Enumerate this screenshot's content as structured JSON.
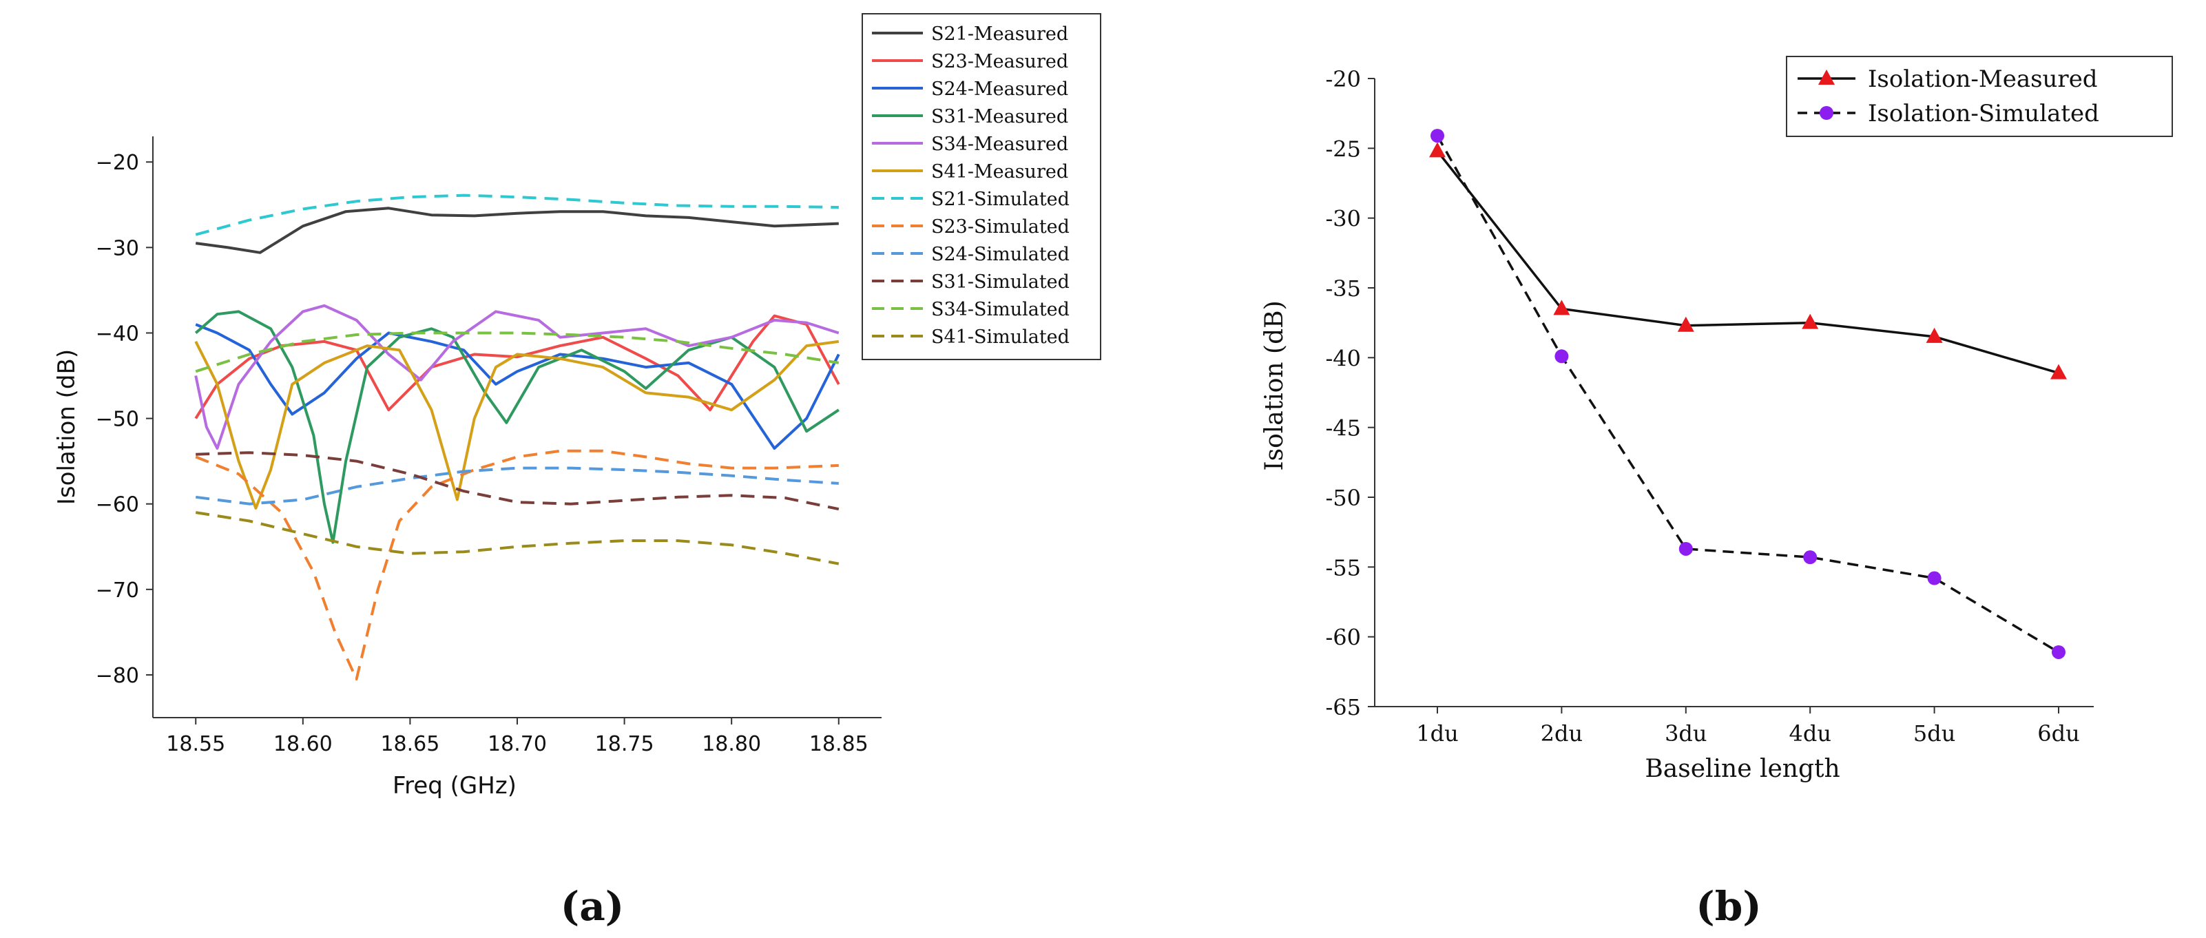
{
  "panel_labels": {
    "a": "(a)",
    "b": "(b)"
  },
  "chart_data": [
    {
      "type": "line",
      "panel": "a",
      "title": "",
      "xlabel": "Freq (GHz)",
      "ylabel": "Isolation (dB)",
      "xlim": [
        18.53,
        18.87
      ],
      "ylim": [
        -85,
        -17
      ],
      "xticks": [
        18.55,
        18.6,
        18.65,
        18.7,
        18.75,
        18.8,
        18.85
      ],
      "xtick_labels": [
        "18.55",
        "18.60",
        "18.65",
        "18.70",
        "18.75",
        "18.80",
        "18.85"
      ],
      "yticks": [
        -80,
        -70,
        -60,
        -50,
        -40,
        -30,
        -20
      ],
      "ytick_labels": [
        "−80",
        "−70",
        "−60",
        "−50",
        "−40",
        "−30",
        "−20"
      ],
      "legend_position": "top-right",
      "series": [
        {
          "name": "S21-Measured",
          "color": "#404040",
          "dash": "solid",
          "x": [
            18.55,
            18.565,
            18.58,
            18.6,
            18.62,
            18.64,
            18.66,
            18.68,
            18.7,
            18.72,
            18.74,
            18.76,
            18.78,
            18.8,
            18.82,
            18.85
          ],
          "y": [
            -29.5,
            -30,
            -30.6,
            -27.5,
            -25.8,
            -25.4,
            -26.2,
            -26.3,
            -26,
            -25.8,
            -25.8,
            -26.3,
            -26.5,
            -27,
            -27.5,
            -27.2
          ]
        },
        {
          "name": "S23-Measured",
          "color": "#ef4b4b",
          "dash": "solid",
          "x": [
            18.55,
            18.56,
            18.575,
            18.59,
            18.61,
            18.625,
            18.64,
            18.66,
            18.68,
            18.7,
            18.72,
            18.74,
            18.76,
            18.775,
            18.79,
            18.81,
            18.82,
            18.835,
            18.85
          ],
          "y": [
            -50,
            -46,
            -43,
            -41.5,
            -41,
            -42,
            -49,
            -44,
            -42.5,
            -42.8,
            -41.5,
            -40.5,
            -43,
            -45,
            -49,
            -41,
            -38,
            -39,
            -46
          ]
        },
        {
          "name": "S24-Measured",
          "color": "#2563d8",
          "dash": "solid",
          "x": [
            18.55,
            18.56,
            18.575,
            18.585,
            18.595,
            18.61,
            18.625,
            18.64,
            18.66,
            18.675,
            18.69,
            18.7,
            18.72,
            18.74,
            18.76,
            18.78,
            18.8,
            18.82,
            18.835,
            18.85
          ],
          "y": [
            -39,
            -40,
            -42,
            -46,
            -49.5,
            -47,
            -43,
            -40,
            -41,
            -42,
            -46,
            -44.5,
            -42.5,
            -43,
            -44,
            -43.5,
            -46,
            -53.5,
            -50,
            -42.5
          ]
        },
        {
          "name": "S31-Measured",
          "color": "#2e9a5f",
          "dash": "solid",
          "x": [
            18.55,
            18.56,
            18.57,
            18.585,
            18.595,
            18.605,
            18.61,
            18.614,
            18.62,
            18.63,
            18.645,
            18.66,
            18.67,
            18.685,
            18.695,
            18.71,
            18.73,
            18.75,
            18.76,
            18.78,
            18.8,
            18.82,
            18.835,
            18.85
          ],
          "y": [
            -40,
            -37.8,
            -37.5,
            -39.5,
            -44,
            -52,
            -60,
            -64.5,
            -55,
            -44,
            -40.5,
            -39.5,
            -40.5,
            -47,
            -50.5,
            -44,
            -42,
            -44.5,
            -46.5,
            -42,
            -40.5,
            -44,
            -51.5,
            -49
          ]
        },
        {
          "name": "S34-Measured",
          "color": "#b66be0",
          "dash": "solid",
          "x": [
            18.55,
            18.555,
            18.56,
            18.57,
            18.585,
            18.6,
            18.61,
            18.625,
            18.64,
            18.655,
            18.67,
            18.69,
            18.71,
            18.72,
            18.74,
            18.76,
            18.78,
            18.8,
            18.82,
            18.835,
            18.85
          ],
          "y": [
            -45,
            -51,
            -53.5,
            -46,
            -41,
            -37.5,
            -36.8,
            -38.5,
            -42.5,
            -45.5,
            -41,
            -37.5,
            -38.5,
            -40.5,
            -40,
            -39.5,
            -41.5,
            -40.5,
            -38.5,
            -38.8,
            -40
          ]
        },
        {
          "name": "S41-Measured",
          "color": "#d4a017",
          "dash": "solid",
          "x": [
            18.55,
            18.56,
            18.57,
            18.578,
            18.585,
            18.595,
            18.61,
            18.63,
            18.645,
            18.66,
            18.672,
            18.68,
            18.69,
            18.7,
            18.72,
            18.74,
            18.76,
            18.78,
            18.8,
            18.82,
            18.835,
            18.85
          ],
          "y": [
            -41,
            -46,
            -55,
            -60.5,
            -56,
            -46,
            -43.5,
            -41.5,
            -42,
            -49,
            -59.5,
            -50,
            -44,
            -42.5,
            -43,
            -44,
            -47,
            -47.5,
            -49,
            -45.5,
            -41.5,
            -41
          ]
        },
        {
          "name": "S21-Simulated",
          "color": "#2ec8d0",
          "dash": "dashed",
          "x": [
            18.55,
            18.575,
            18.6,
            18.625,
            18.65,
            18.675,
            18.7,
            18.725,
            18.75,
            18.775,
            18.8,
            18.825,
            18.85
          ],
          "y": [
            -28.5,
            -26.8,
            -25.5,
            -24.6,
            -24.1,
            -23.9,
            -24.1,
            -24.4,
            -24.8,
            -25.1,
            -25.2,
            -25.2,
            -25.3
          ]
        },
        {
          "name": "S23-Simulated",
          "color": "#f08030",
          "dash": "dashed",
          "x": [
            18.55,
            18.57,
            18.59,
            18.605,
            18.615,
            18.625,
            18.635,
            18.645,
            18.66,
            18.68,
            18.7,
            18.72,
            18.74,
            18.76,
            18.78,
            18.8,
            18.82,
            18.85
          ],
          "y": [
            -54.5,
            -56.5,
            -61,
            -68,
            -75,
            -80.5,
            -70,
            -62,
            -58,
            -56,
            -54.5,
            -53.8,
            -53.8,
            -54.5,
            -55.3,
            -55.8,
            -55.8,
            -55.5
          ]
        },
        {
          "name": "S24-Simulated",
          "color": "#5599dd",
          "dash": "dashed",
          "x": [
            18.55,
            18.575,
            18.6,
            18.625,
            18.65,
            18.675,
            18.7,
            18.725,
            18.75,
            18.775,
            18.8,
            18.825,
            18.85
          ],
          "y": [
            -59.2,
            -60,
            -59.5,
            -58,
            -57,
            -56.2,
            -55.8,
            -55.8,
            -56,
            -56.3,
            -56.7,
            -57.2,
            -57.6
          ]
        },
        {
          "name": "S31-Simulated",
          "color": "#7a3e3a",
          "dash": "dashed",
          "x": [
            18.55,
            18.575,
            18.6,
            18.625,
            18.65,
            18.675,
            18.7,
            18.725,
            18.75,
            18.775,
            18.8,
            18.825,
            18.85
          ],
          "y": [
            -54.2,
            -54,
            -54.3,
            -55,
            -56.5,
            -58.5,
            -59.8,
            -60,
            -59.6,
            -59.2,
            -59,
            -59.3,
            -60.6
          ]
        },
        {
          "name": "S34-Simulated",
          "color": "#7ac143",
          "dash": "dashed",
          "x": [
            18.55,
            18.575,
            18.6,
            18.625,
            18.65,
            18.675,
            18.7,
            18.725,
            18.75,
            18.775,
            18.8,
            18.825,
            18.85
          ],
          "y": [
            -44.5,
            -42.5,
            -41,
            -40.2,
            -40,
            -40,
            -40,
            -40.2,
            -40.5,
            -41,
            -41.8,
            -42.5,
            -43.5
          ]
        },
        {
          "name": "S41-Simulated",
          "color": "#9a8a1a",
          "dash": "dashed",
          "x": [
            18.55,
            18.575,
            18.6,
            18.625,
            18.65,
            18.675,
            18.7,
            18.725,
            18.75,
            18.775,
            18.8,
            18.825,
            18.85
          ],
          "y": [
            -61,
            -62,
            -63.5,
            -65,
            -65.8,
            -65.6,
            -65,
            -64.6,
            -64.3,
            -64.3,
            -64.8,
            -65.8,
            -67
          ]
        }
      ]
    },
    {
      "type": "line",
      "panel": "b",
      "title": "",
      "xlabel": "Baseline length",
      "ylabel": "Isolation (dB)",
      "categories": [
        "1du",
        "2du",
        "3du",
        "4du",
        "5du",
        "6du"
      ],
      "ylim": [
        -65,
        -20
      ],
      "yticks": [
        -65,
        -60,
        -55,
        -50,
        -45,
        -40,
        -35,
        -30,
        -25,
        -20
      ],
      "ytick_labels": [
        "-65",
        "-60",
        "-55",
        "-50",
        "-45",
        "-40",
        "-35",
        "-30",
        "-25",
        "-20"
      ],
      "legend_position": "top-right",
      "series": [
        {
          "name": "Isolation-Measured",
          "color": "#111111",
          "marker_color": "#e8191d",
          "marker": "triangle",
          "dash": "solid",
          "values": [
            -25.2,
            -36.5,
            -37.7,
            -37.5,
            -38.5,
            -41.1
          ]
        },
        {
          "name": "Isolation-Simulated",
          "color": "#111111",
          "marker_color": "#8c1ef0",
          "marker": "circle",
          "dash": "dashed",
          "values": [
            -24.1,
            -39.9,
            -53.7,
            -54.3,
            -55.8,
            -61.1
          ]
        }
      ]
    }
  ]
}
